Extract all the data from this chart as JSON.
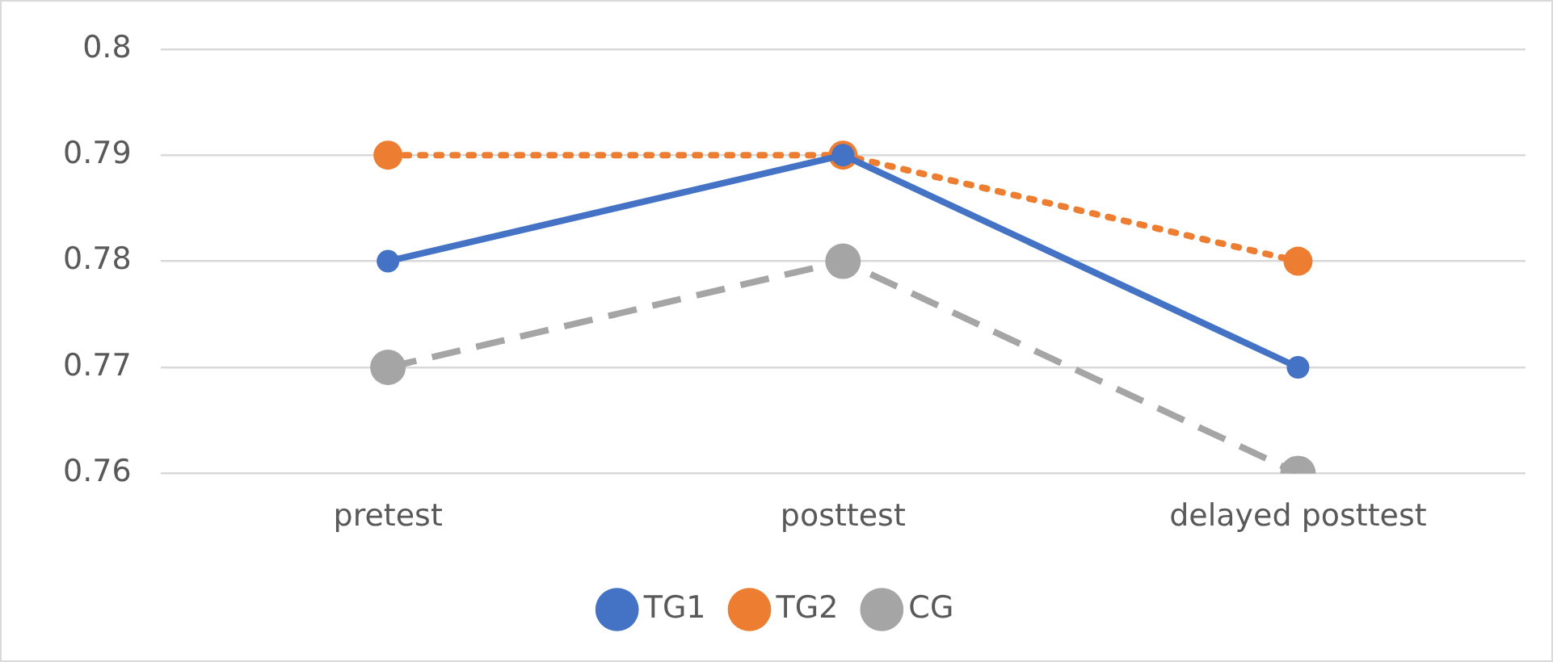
{
  "chart_data": {
    "type": "line",
    "categories": [
      "pretest",
      "posttest",
      "delayed posttest"
    ],
    "series": [
      {
        "name": "TG1",
        "color": "#4472c4",
        "values": [
          0.78,
          0.79,
          0.77
        ],
        "line_style": "solid"
      },
      {
        "name": "TG2",
        "color": "#ed7d31",
        "values": [
          0.79,
          0.79,
          0.78
        ],
        "line_style": "dotted"
      },
      {
        "name": "CG",
        "color": "#a5a5a5",
        "values": [
          0.77,
          0.78,
          0.76
        ],
        "line_style": "dashed"
      }
    ],
    "ylim": [
      0.76,
      0.8
    ],
    "yticks": [
      0.76,
      0.77,
      0.78,
      0.79,
      0.8
    ],
    "grid": "y",
    "legend": "bottom",
    "marker": "circle"
  }
}
